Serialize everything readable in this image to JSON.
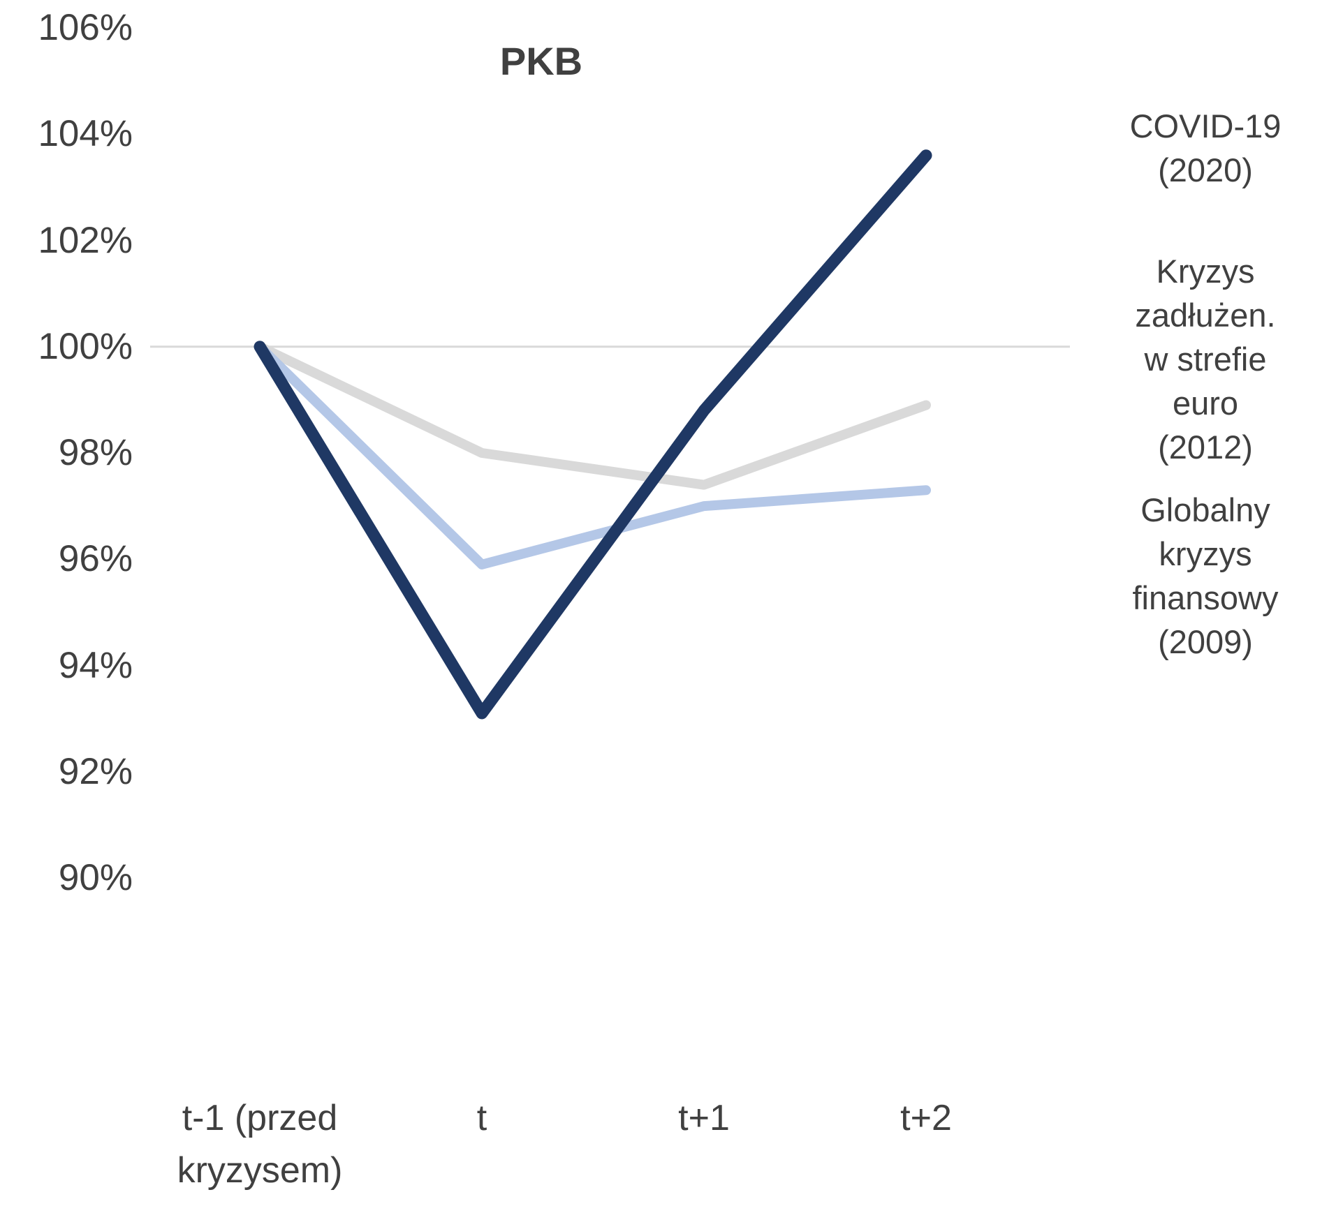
{
  "chart_data": {
    "type": "line",
    "title": "PKB",
    "categories": [
      "t-1 (przed kryzysem)",
      "t",
      "t+1",
      "t+2"
    ],
    "y_ticks": [
      "106%",
      "104%",
      "102%",
      "100%",
      "98%",
      "96%",
      "94%",
      "92%",
      "90%"
    ],
    "ylim": [
      90,
      106
    ],
    "gridline_at": 100,
    "grid": "single horizontal gridline at 100%",
    "legend_position": "labels at right end of lines",
    "colors": {
      "covid": "#1f3864",
      "euro_debt": "#d9d9d9",
      "global_financial": "#b4c7e7",
      "gridline": "#d9d9d9",
      "text": "#404040"
    },
    "series": [
      {
        "name": "COVID-19 (2020)",
        "label": "COVID-19\n(2020)",
        "color": "#1f3864",
        "values": [
          100,
          93.1,
          98.8,
          103.6
        ]
      },
      {
        "name": "Kryzys zadłużen. w strefie euro (2012)",
        "label": "Kryzys\nzadłużen.\nw strefie\neuro\n(2012)",
        "color": "#d9d9d9",
        "values": [
          100,
          98.0,
          97.4,
          98.9
        ]
      },
      {
        "name": "Globalny kryzys finansowy (2009)",
        "label": "Globalny\nkryzys\nfinansowy\n(2009)",
        "color": "#b4c7e7",
        "values": [
          100,
          95.9,
          97.0,
          97.3
        ]
      }
    ]
  }
}
